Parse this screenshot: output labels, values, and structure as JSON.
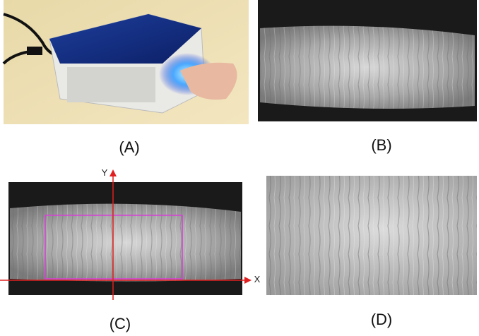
{
  "panels": [
    {
      "label": "(A)"
    },
    {
      "label": "(B)"
    },
    {
      "label": "(C)",
      "axes": {
        "x": "X",
        "y": "Y"
      }
    },
    {
      "label": "(D)"
    }
  ]
}
